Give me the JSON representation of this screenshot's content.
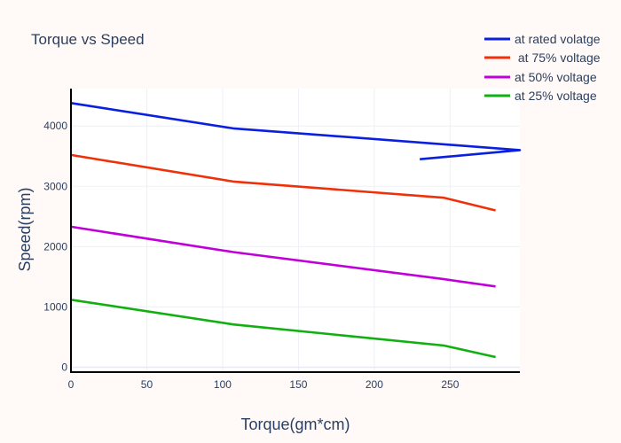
{
  "chart_data": {
    "type": "line",
    "title": "Torque vs Speed",
    "xlabel": "Torque(gm*cm)",
    "ylabel": "Speed(rpm)",
    "xlim": [
      0,
      296
    ],
    "ylim": [
      -80,
      4620
    ],
    "xticks": [
      0,
      50,
      100,
      150,
      200,
      250
    ],
    "yticks": [
      0,
      1000,
      2000,
      3000,
      4000
    ],
    "grid": true,
    "legend_position": "top-right",
    "series": [
      {
        "name": "at rated volatge",
        "color": "#0a1fe0",
        "x": [
          0,
          107,
          296,
          230
        ],
        "y": [
          4380,
          3960,
          3600,
          3450
        ]
      },
      {
        "name": " at 75% voltage",
        "color": "#f0300a",
        "x": [
          0,
          107,
          246,
          280
        ],
        "y": [
          3520,
          3080,
          2810,
          2600
        ]
      },
      {
        "name": "at 50% voltage",
        "color": "#c000d8",
        "x": [
          0,
          107,
          246,
          280
        ],
        "y": [
          2330,
          1910,
          1460,
          1340
        ]
      },
      {
        "name": "at 25% voltage",
        "color": "#10b010",
        "x": [
          0,
          107,
          246,
          280
        ],
        "y": [
          1120,
          710,
          360,
          170
        ]
      }
    ]
  }
}
